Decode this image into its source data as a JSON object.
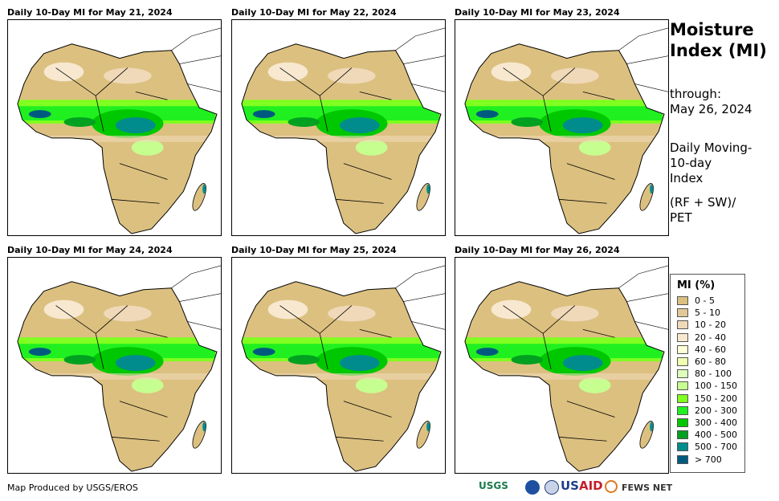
{
  "panels": [
    {
      "title": "Daily 10-Day MI for May 21, 2024"
    },
    {
      "title": "Daily 10-Day MI for May 22, 2024"
    },
    {
      "title": "Daily 10-Day MI for May 23, 2024"
    },
    {
      "title": "Daily 10-Day MI for May 24, 2024"
    },
    {
      "title": "Daily 10-Day MI for May 25, 2024"
    },
    {
      "title": "Daily 10-Day MI for May 26, 2024"
    }
  ],
  "side": {
    "title_line1": "Moisture",
    "title_line2": "Index (MI)",
    "through": "through:",
    "through_date": "May 26, 2024",
    "desc1": "Daily Moving-",
    "desc2": "10-day",
    "desc3": "Index",
    "formula1": "(RF + SW)/",
    "formula2": "PET"
  },
  "legend": {
    "title": "MI (%)",
    "items": [
      {
        "label": "0 - 5",
        "color": "#dcc080"
      },
      {
        "label": "5 - 10",
        "color": "#e2c898"
      },
      {
        "label": "10 - 20",
        "color": "#efd9b8"
      },
      {
        "label": "20 - 40",
        "color": "#f7e8cf"
      },
      {
        "label": "40 - 60",
        "color": "#ffffd8"
      },
      {
        "label": "60 - 80",
        "color": "#f0ffb0"
      },
      {
        "label": "80 - 100",
        "color": "#ddffbb"
      },
      {
        "label": "100 - 150",
        "color": "#c6ff90"
      },
      {
        "label": "150 - 200",
        "color": "#80ff20"
      },
      {
        "label": "200 - 300",
        "color": "#20f020"
      },
      {
        "label": "300 - 400",
        "color": "#00c800"
      },
      {
        "label": "400 - 500",
        "color": "#00a020"
      },
      {
        "label": "500 - 700",
        "color": "#008c8c"
      },
      {
        "label": "> 700",
        "color": "#005a80"
      }
    ]
  },
  "footer": {
    "credit": "Map Produced by USGS/EROS",
    "logos": [
      "USGS",
      "NOAA",
      "DOS",
      "USAID",
      "FEWS NET"
    ]
  }
}
